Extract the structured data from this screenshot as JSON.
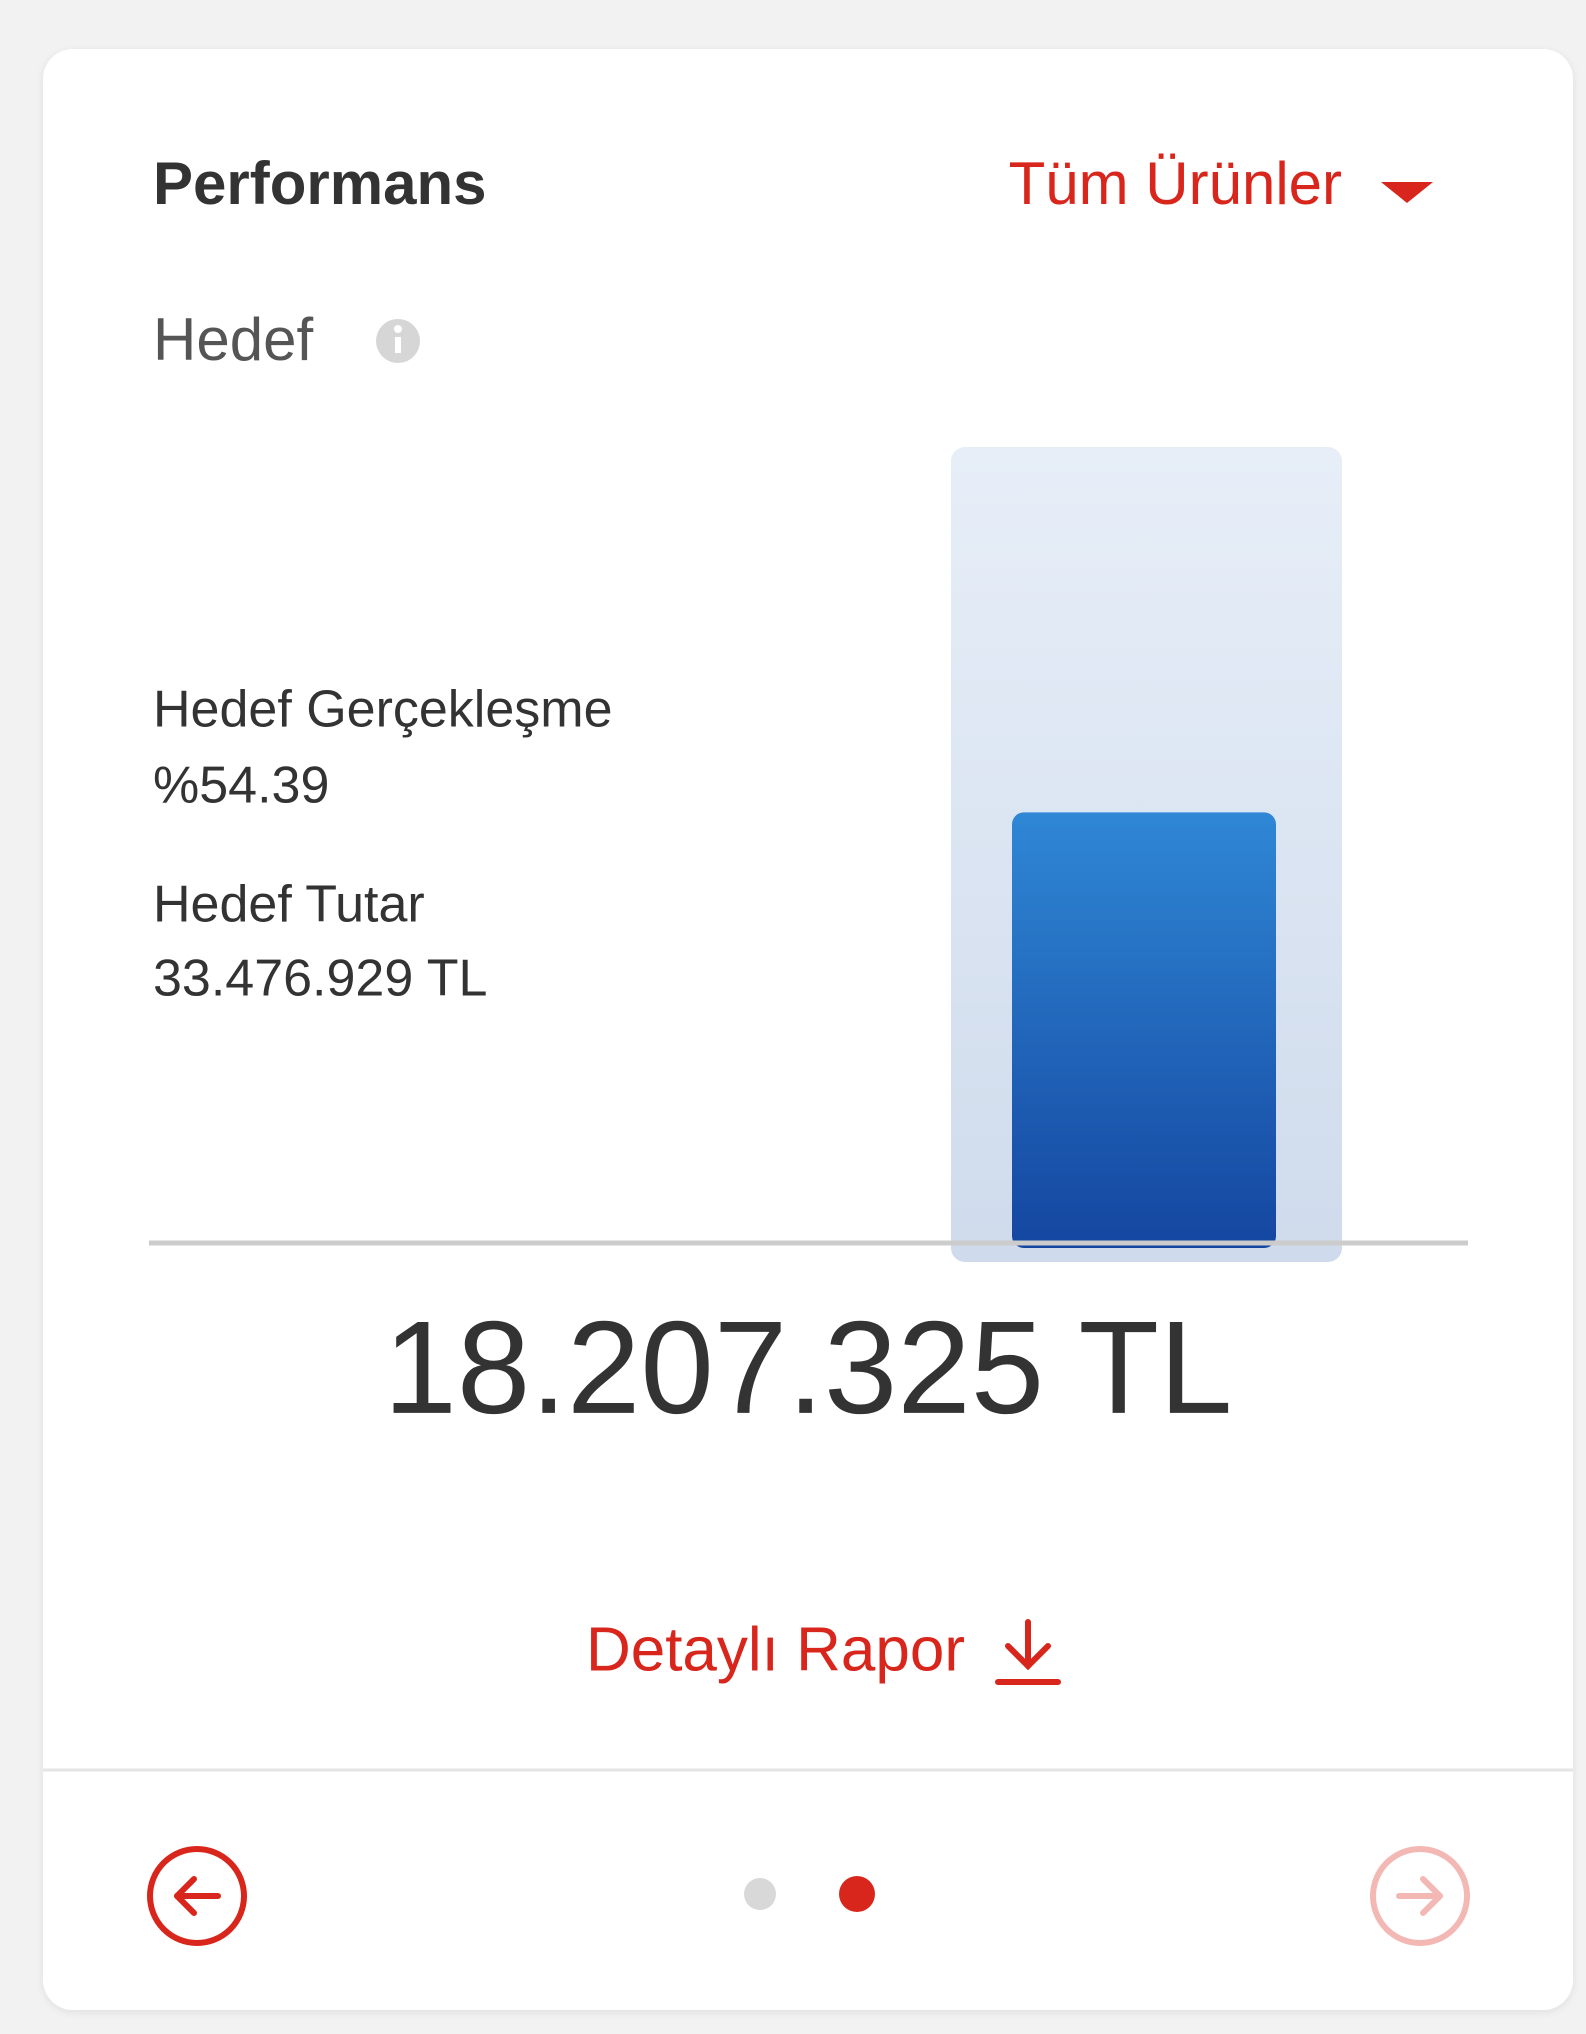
{
  "header": {
    "title": "Performans",
    "filter": "Tüm Ürünler"
  },
  "section": {
    "title": "Hedef"
  },
  "achievement": {
    "label": "Hedef Gerçekleşme",
    "value_label": "%54.39"
  },
  "target": {
    "label": "Hedef Tutar",
    "value": 33476929,
    "value_label": "33.476.929 TL"
  },
  "realized": {
    "value": 18207325,
    "value_label": "18.207.325 TL"
  },
  "report_link": "Detaylı Rapor"
}
